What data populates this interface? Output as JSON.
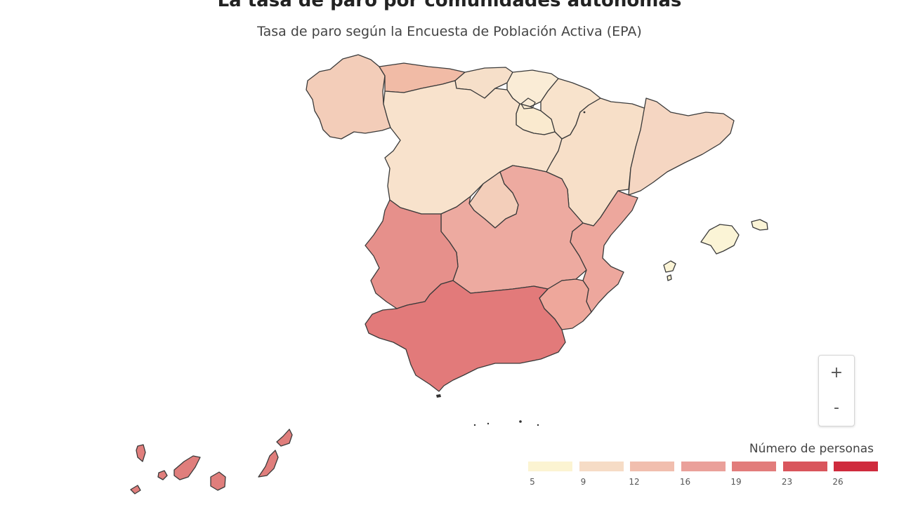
{
  "header": {
    "title": "La tasa de paro por comunidades autónomas",
    "subtitle": "Tasa de paro según la Encuesta de Población Activa (EPA)"
  },
  "map": {
    "regions": [
      {
        "name": "Galicia",
        "color": "#f3cdb9"
      },
      {
        "name": "Asturias",
        "color": "#f1bba6"
      },
      {
        "name": "Cantabria",
        "color": "#f6dfc9"
      },
      {
        "name": "País Vasco",
        "color": "#faecd6"
      },
      {
        "name": "Navarra",
        "color": "#f8e3cc"
      },
      {
        "name": "La Rioja",
        "color": "#faeacf"
      },
      {
        "name": "Castilla y León",
        "color": "#f8e2cc"
      },
      {
        "name": "Aragón",
        "color": "#f7dfc8"
      },
      {
        "name": "Cataluña",
        "color": "#f5d6c2"
      },
      {
        "name": "Comunidad de Madrid",
        "color": "#f3ceba"
      },
      {
        "name": "Castilla-La Mancha",
        "color": "#edaaa0"
      },
      {
        "name": "Comunitat Valenciana",
        "color": "#eda79d"
      },
      {
        "name": "Región de Murcia",
        "color": "#eea79b"
      },
      {
        "name": "Extremadura",
        "color": "#e6908b"
      },
      {
        "name": "Andalucía",
        "color": "#e27a7a"
      },
      {
        "name": "Illes Balears",
        "color": "#fbf4d6"
      },
      {
        "name": "Canarias",
        "color": "#e07e7c"
      }
    ]
  },
  "zoom": {
    "plus_label": "+",
    "minus_label": "-"
  },
  "legend": {
    "title": "Número de personas",
    "ticks": [
      "5",
      "9",
      "12",
      "16",
      "19",
      "23",
      "26"
    ],
    "colors": [
      "#fcf4d2",
      "#f6dcc6",
      "#f1beae",
      "#eaa09a",
      "#e27c7b",
      "#d9555c",
      "#cf2b3d"
    ]
  }
}
